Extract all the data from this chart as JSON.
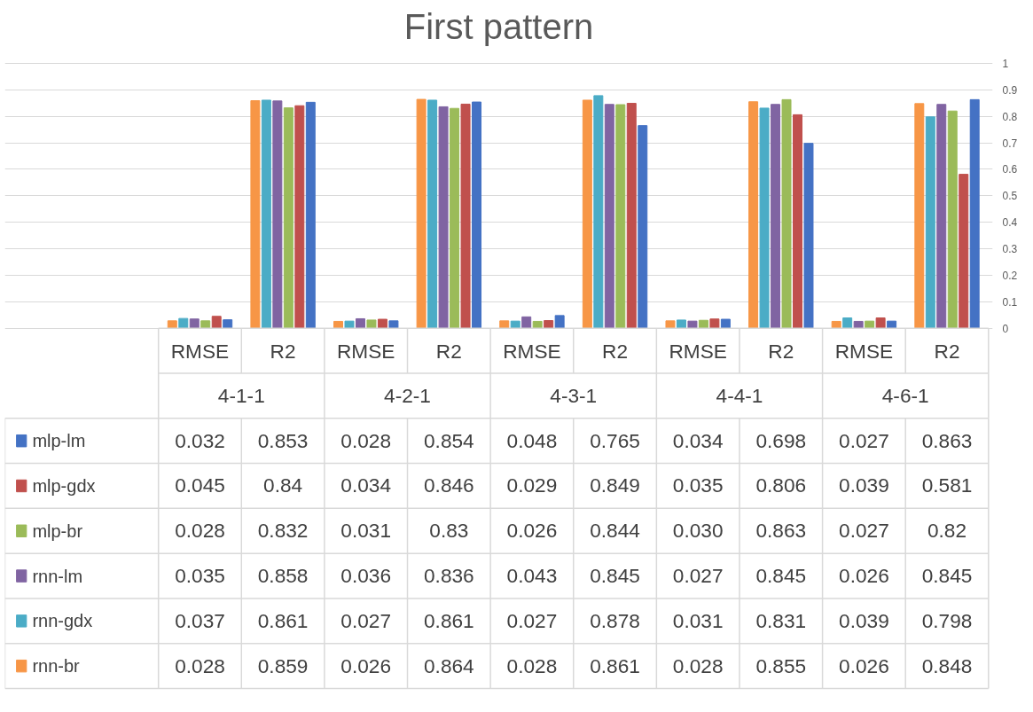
{
  "chart_data": {
    "type": "bar",
    "title": "First pattern",
    "categories": [
      "RMSE",
      "R2",
      "RMSE",
      "R2",
      "RMSE",
      "R2",
      "RMSE",
      "R2",
      "RMSE",
      "R2"
    ],
    "annotations": [
      "4-1-1",
      "4-2-1",
      "4-3-1",
      "4-4-1",
      "4-6-1"
    ],
    "ylim": [
      0,
      1
    ],
    "yticks": [
      0,
      0.1,
      0.2,
      0.3,
      0.4,
      0.5,
      0.6,
      0.7,
      0.8,
      0.9,
      1
    ],
    "grid": "y",
    "legend": "bottom left",
    "series": [
      {
        "name": "mlp-lm",
        "color": "#4472c4",
        "values": [
          0.032,
          0.853,
          0.028,
          0.854,
          0.048,
          0.765,
          0.034,
          0.698,
          0.027,
          0.863
        ],
        "value_labels": [
          "0.032",
          "0.853",
          "0.028",
          "0.854",
          "0.048",
          "0.765",
          "0.034",
          "0.698",
          "0.027",
          "0.863"
        ]
      },
      {
        "name": "mlp-gdx",
        "color": "#c0504d",
        "values": [
          0.045,
          0.84,
          0.034,
          0.846,
          0.029,
          0.849,
          0.035,
          0.806,
          0.039,
          0.581
        ],
        "value_labels": [
          "0.045",
          "0.84",
          "0.034",
          "0.846",
          "0.029",
          "0.849",
          "0.035",
          "0.806",
          "0.039",
          "0.581"
        ]
      },
      {
        "name": "mlp-br",
        "color": "#9bbb59",
        "values": [
          0.028,
          0.832,
          0.031,
          0.83,
          0.026,
          0.844,
          0.03,
          0.863,
          0.027,
          0.82
        ],
        "value_labels": [
          "0.028",
          "0.832",
          "0.031",
          "0.83",
          "0.026",
          "0.844",
          "0.030",
          "0.863",
          "0.027",
          "0.82"
        ]
      },
      {
        "name": "rnn-lm",
        "color": "#8064a2",
        "values": [
          0.035,
          0.858,
          0.036,
          0.836,
          0.043,
          0.845,
          0.027,
          0.845,
          0.026,
          0.845
        ],
        "value_labels": [
          "0.035",
          "0.858",
          "0.036",
          "0.836",
          "0.043",
          "0.845",
          "0.027",
          "0.845",
          "0.026",
          "0.845"
        ]
      },
      {
        "name": "rnn-gdx",
        "color": "#4bacc6",
        "values": [
          0.037,
          0.861,
          0.027,
          0.861,
          0.027,
          0.878,
          0.031,
          0.831,
          0.039,
          0.798
        ],
        "value_labels": [
          "0.037",
          "0.861",
          "0.027",
          "0.861",
          "0.027",
          "0.878",
          "0.031",
          "0.831",
          "0.039",
          "0.798"
        ]
      },
      {
        "name": "rnn-br",
        "color": "#f79646",
        "values": [
          0.028,
          0.859,
          0.026,
          0.864,
          0.028,
          0.861,
          0.028,
          0.855,
          0.026,
          0.848
        ],
        "value_labels": [
          "0.028",
          "0.859",
          "0.026",
          "0.864",
          "0.028",
          "0.861",
          "0.028",
          "0.855",
          "0.026",
          "0.848"
        ]
      }
    ]
  }
}
